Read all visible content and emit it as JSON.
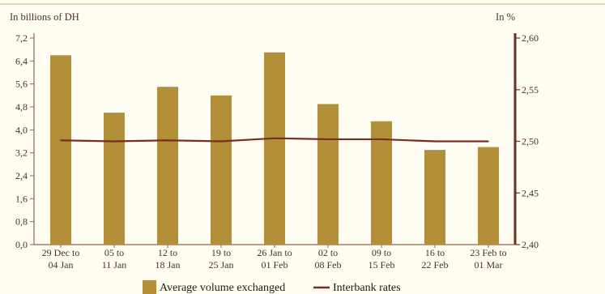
{
  "colors": {
    "bar": "#b38f37",
    "line": "#7a2d20",
    "axis": "#8a6a4a",
    "right_axis": "#6e2f24",
    "frame": "#d8cfa0",
    "background": "#fffdf2"
  },
  "chart_data": {
    "type": "bar",
    "categories": [
      [
        "29 Dec to",
        "04 Jan"
      ],
      [
        "05 to",
        "11 Jan"
      ],
      [
        "12 to",
        "18 Jan"
      ],
      [
        "19 to",
        "25 Jan"
      ],
      [
        "26 Jan to",
        "01 Feb"
      ],
      [
        "02 to",
        "08 Feb"
      ],
      [
        "09 to",
        "15 Feb"
      ],
      [
        "16 to",
        "22 Feb"
      ],
      [
        "23 Feb to",
        "01 Mar"
      ]
    ],
    "series": [
      {
        "name": "Average volume exchanged",
        "type": "bar",
        "axis": "left",
        "values": [
          6.6,
          4.6,
          5.5,
          5.2,
          6.7,
          4.9,
          4.3,
          3.3,
          3.4
        ]
      },
      {
        "name": "Interbank rates",
        "type": "line",
        "axis": "right",
        "values": [
          2.501,
          2.5,
          2.501,
          2.5,
          2.503,
          2.502,
          2.502,
          2.5,
          2.5
        ]
      }
    ],
    "left_axis": {
      "label": "In billions of DH",
      "ylim": [
        0,
        7.2
      ],
      "ticks": [
        "0,0",
        "0,8",
        "1,6",
        "2,4",
        "3,2",
        "4,0",
        "4,8",
        "5,6",
        "6,4",
        "7,2"
      ]
    },
    "right_axis": {
      "label": "In %",
      "ylim": [
        2.4,
        2.6
      ],
      "ticks": [
        "2,40",
        "2,45",
        "2,50",
        "2,55",
        "2,60"
      ]
    },
    "grid": false,
    "legend_position": "bottom"
  }
}
